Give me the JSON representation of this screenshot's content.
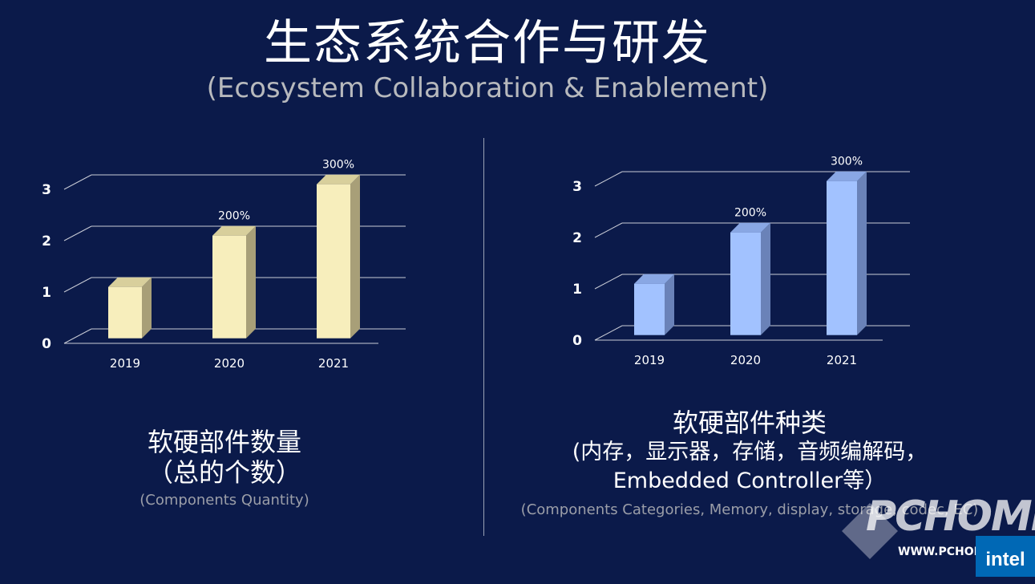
{
  "header": {
    "title": "生态系统合作与研发",
    "subtitle": "(Ecosystem Collaboration & Enablement)"
  },
  "chart_data": [
    {
      "type": "bar",
      "categories": [
        "2019",
        "2020",
        "2021"
      ],
      "values": [
        1,
        2,
        3
      ],
      "data_labels": [
        "",
        "200%",
        "300%"
      ],
      "yticks": [
        "0",
        "1",
        "2",
        "3"
      ],
      "ylim": [
        0,
        3
      ],
      "color": "#f7eebc",
      "side_color": "#a89f78",
      "top_color": "#d8cf9c"
    },
    {
      "type": "bar",
      "categories": [
        "2019",
        "2020",
        "2021"
      ],
      "values": [
        1,
        2,
        3
      ],
      "data_labels": [
        "",
        "200%",
        "300%"
      ],
      "yticks": [
        "0",
        "1",
        "2",
        "3"
      ],
      "ylim": [
        0,
        3
      ],
      "color": "#a2c2ff",
      "side_color": "#6a82b8",
      "top_color": "#89a7e4"
    }
  ],
  "left_caption": {
    "line1": "软硬部件数量",
    "line2": "（总的个数）",
    "sub": "(Components Quantity)"
  },
  "right_caption": {
    "line1": "软硬部件种类",
    "line2": "(内存，显示器，存储，音频编解码，",
    "line3": "Embedded Controller等）",
    "sub": "(Components Categories, Memory, display, storage, codec, EC)"
  },
  "watermark": {
    "brand": "PCHOME",
    "url": "WWW.PCHOME.NET"
  },
  "logo": {
    "text": "intel"
  }
}
